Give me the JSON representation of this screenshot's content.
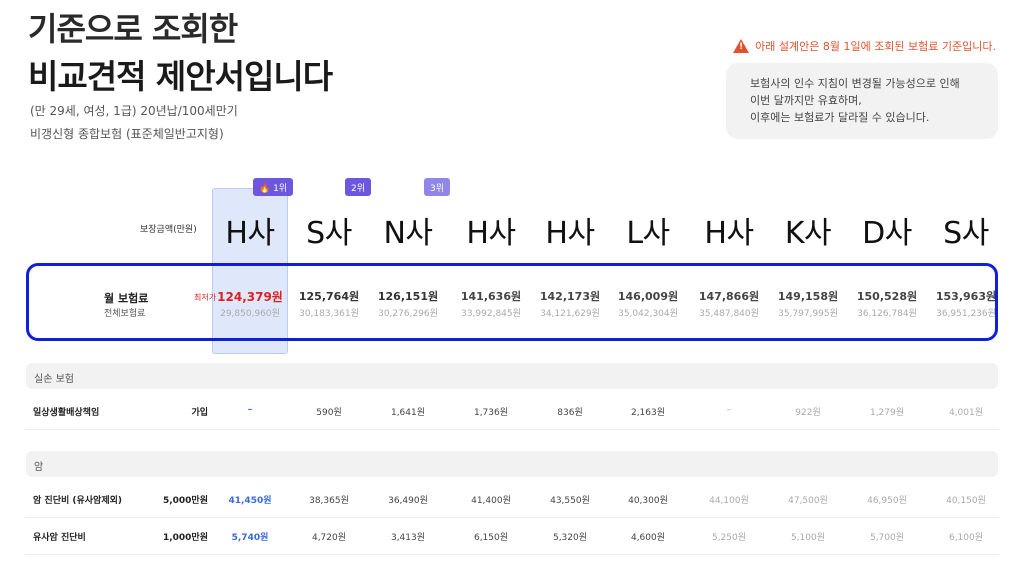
{
  "header": {
    "title_line1": "기준으로 조회한",
    "title_line2": "비교견적 제안서입니다",
    "subtitle1": "(만 29세, 여성, 1급) 20년납/100세만기",
    "subtitle2": "비갱신형 종합보험 (표준체일반고지형)"
  },
  "notice": {
    "warning": "아래 설계안은 8월 1일에 조회된 보험료 기준입니다.",
    "lines": [
      "보험사의 인수 지침이 변경될 가능성으로 인해",
      "이번 달까지만 유효하며,",
      "이후에는 보험료가 달라질 수 있습니다."
    ]
  },
  "badges": [
    "🔥 1위",
    "2위",
    "3위"
  ],
  "coverage_label": "보장금액(만원)",
  "companies": [
    "H사",
    "S사",
    "N사",
    "H사",
    "H사",
    "L사",
    "H사",
    "K사",
    "D사",
    "S사"
  ],
  "premium": {
    "label": "월 보험료",
    "sub_label": "전체보험료",
    "lowest_tag": "최저가",
    "prices": [
      "124,379원",
      "125,764원",
      "126,151원",
      "141,636원",
      "142,173원",
      "146,009원",
      "147,866원",
      "149,158원",
      "150,528원",
      "153,963원"
    ],
    "totals": [
      "29,850,960원",
      "30,183,361원",
      "30,276,296원",
      "33,992,845원",
      "34,121,629원",
      "35,042,304원",
      "35,487,840원",
      "35,797,995원",
      "36,126,784원",
      "36,951,236원"
    ]
  },
  "sections": [
    {
      "name": "실손 보험",
      "rows": [
        {
          "label": "일상생활배상책임",
          "amount": "가입",
          "values": [
            "–",
            "590원",
            "1,641원",
            "1,736원",
            "836원",
            "2,163원",
            "–",
            "922원",
            "1,279원",
            "4,001원"
          ]
        }
      ]
    },
    {
      "name": "암",
      "rows": [
        {
          "label": "암 진단비 (유사암제외)",
          "amount": "5,000만원",
          "values": [
            "41,450원",
            "38,365원",
            "36,490원",
            "41,400원",
            "43,550원",
            "40,300원",
            "44,100원",
            "47,500원",
            "46,950원",
            "40,150원"
          ]
        },
        {
          "label": "유사암 진단비",
          "amount": "1,000만원",
          "values": [
            "5,740원",
            "4,720원",
            "3,413원",
            "6,150원",
            "5,320원",
            "4,600원",
            "5,250원",
            "5,100원",
            "5,700원",
            "6,100원"
          ]
        }
      ]
    }
  ],
  "colors": {
    "accent": "#6e57e0",
    "highlight": "#dfe8fb",
    "lowest_red": "#e02020",
    "frame_blue": "#1020d8",
    "warning": "#e0532e"
  }
}
